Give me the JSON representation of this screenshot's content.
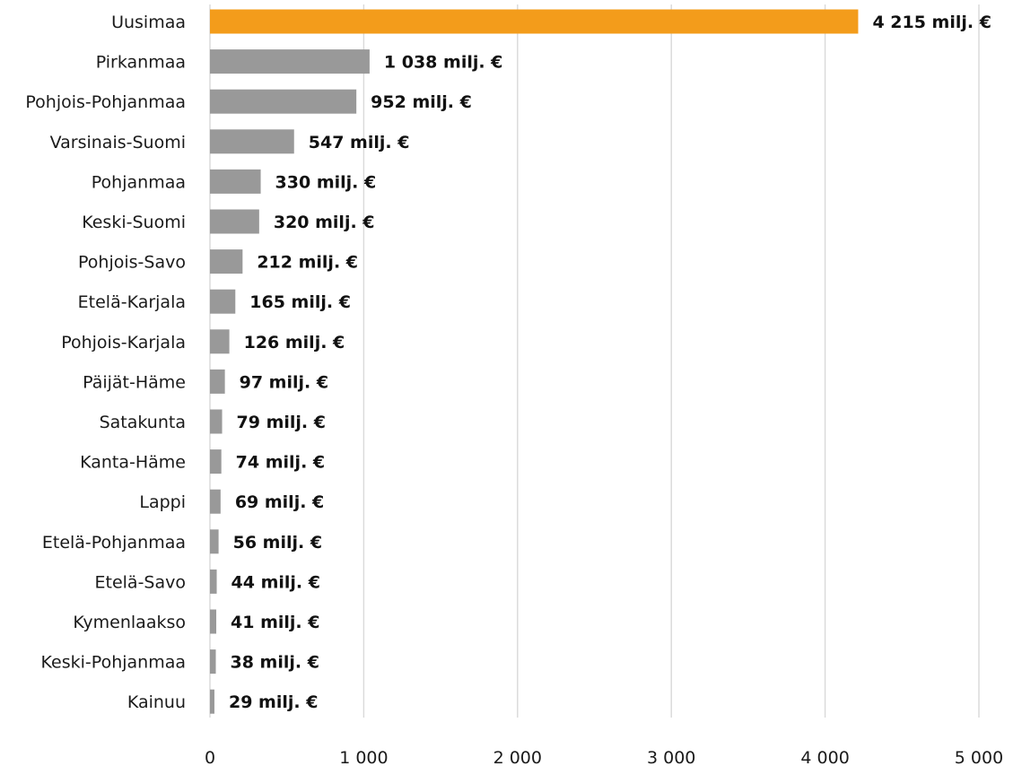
{
  "chart_data": {
    "type": "bar",
    "orientation": "horizontal",
    "categories": [
      "Uusimaa",
      "Pirkanmaa",
      "Pohjois-Pohjanmaa",
      "Varsinais-Suomi",
      "Pohjanmaa",
      "Keski-Suomi",
      "Pohjois-Savo",
      "Etelä-Karjala",
      "Pohjois-Karjala",
      "Päijät-Häme",
      "Satakunta",
      "Kanta-Häme",
      "Lappi",
      "Etelä-Pohjanmaa",
      "Etelä-Savo",
      "Kymenlaakso",
      "Keski-Pohjanmaa",
      "Kainuu"
    ],
    "values": [
      4215,
      1038,
      952,
      547,
      330,
      320,
      212,
      165,
      126,
      97,
      79,
      74,
      69,
      56,
      44,
      41,
      38,
      29
    ],
    "data_labels": [
      "4 215 milj. €",
      "1 038 milj. €",
      "952 milj. €",
      "547 milj. €",
      "330 milj. €",
      "320 milj. €",
      "212 milj. €",
      "165 milj. €",
      "126 milj. €",
      "97 milj. €",
      "79 milj. €",
      "74 milj. €",
      "69 milj. €",
      "56 milj. €",
      "44 milj. €",
      "41 milj. €",
      "38 milj. €",
      "29 milj. €"
    ],
    "xlim": [
      0,
      5000
    ],
    "xticks": [
      0,
      1000,
      2000,
      3000,
      4000,
      5000
    ],
    "xtick_labels": [
      "0",
      "1 000",
      "2 000",
      "3 000",
      "4 000",
      "5 000"
    ],
    "grid": "vertical",
    "colors": {
      "highlight": "#f39c1b",
      "default": "#999999"
    },
    "highlight_category": "Uusimaa"
  }
}
